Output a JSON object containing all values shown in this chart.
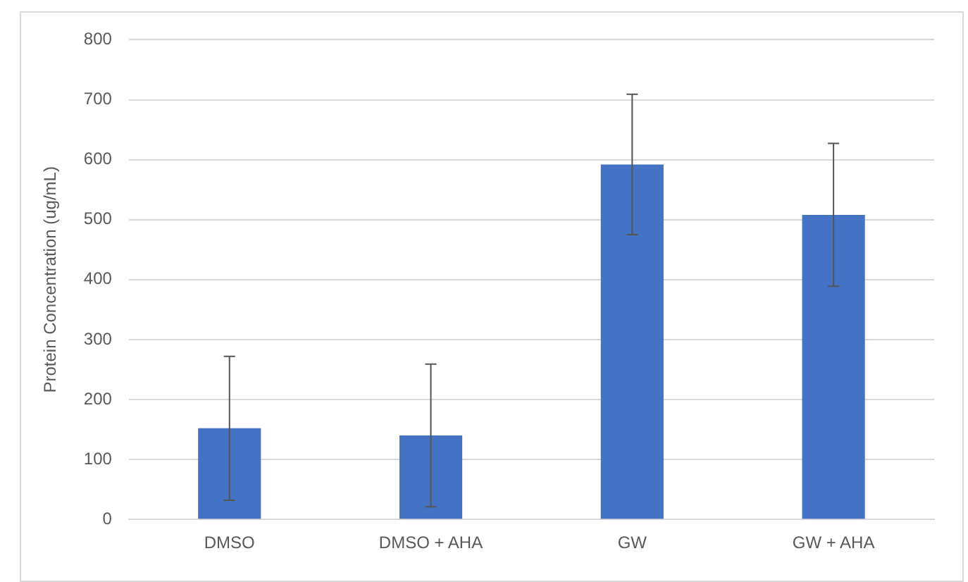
{
  "chart_data": {
    "type": "bar",
    "ylabel": "Protein Concentration (ug/mL)",
    "categories": [
      "DMSO",
      "DMSO + AHA",
      "GW",
      "GW + AHA"
    ],
    "values": [
      152,
      140,
      592,
      508
    ],
    "errors": [
      120,
      119,
      117,
      119
    ],
    "color": "#4472c4",
    "ylim": [
      0,
      800
    ],
    "yticks": [
      0,
      100,
      200,
      300,
      400,
      500,
      600,
      700,
      800
    ],
    "grid": "y",
    "legend": false
  }
}
